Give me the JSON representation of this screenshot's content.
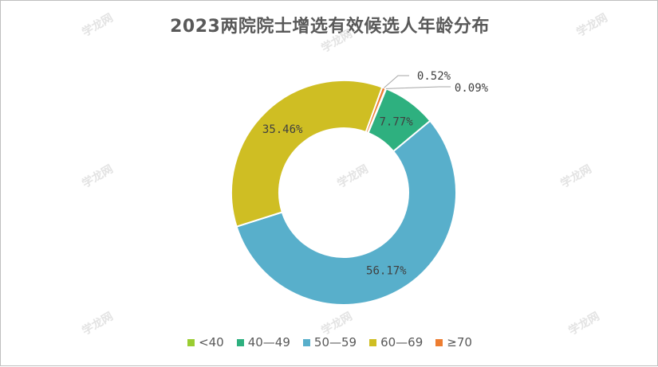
{
  "chart_data": {
    "type": "pie",
    "donut": true,
    "title": "2023两院院士增选有效候选人年龄分布",
    "legend_position": "bottom",
    "categories": [
      "<40",
      "40—49",
      "50—59",
      "60—69",
      "≥70"
    ],
    "values": [
      0.09,
      7.77,
      56.17,
      35.46,
      0.52
    ],
    "data_labels": [
      "0.09%",
      "7.77%",
      "56.17%",
      "35.46%",
      "0.52%"
    ],
    "colors": [
      "#9ACD32",
      "#2EB07F",
      "#58AFCB",
      "#CFBE23",
      "#ED7D31"
    ]
  },
  "watermark": "学龙网"
}
